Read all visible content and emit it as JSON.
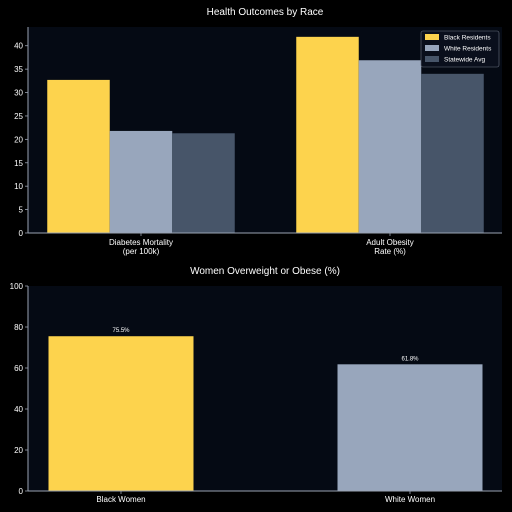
{
  "colors": {
    "figure_bg": "#000000",
    "plot_bg": "#050a14",
    "axis": "#9aa3b2",
    "text": "#ffffff",
    "legend_bg": "#0a0f1c",
    "legend_border": "#6b7280"
  },
  "chart_data": [
    {
      "type": "bar",
      "title": "Health Outcomes by Race",
      "xlabel": "",
      "ylabel": "",
      "categories": [
        [
          "Diabetes Mortality",
          "(per 100k)"
        ],
        [
          "Adult Obesity",
          "Rate (%)"
        ]
      ],
      "series": [
        {
          "name": "Black Residents",
          "color": "#fdd34d",
          "values": [
            32.7,
            41.9
          ]
        },
        {
          "name": "White Residents",
          "color": "#98a6bc",
          "values": [
            21.8,
            36.9
          ]
        },
        {
          "name": "Statewide Avg",
          "color": "#475569",
          "values": [
            21.3,
            34.0
          ]
        }
      ],
      "ylim": [
        0,
        44
      ],
      "yticks": [
        0,
        5,
        10,
        15,
        20,
        25,
        30,
        35,
        40
      ],
      "grid": false,
      "legend": "top-right"
    },
    {
      "type": "bar",
      "title": "Women Overweight or Obese (%)",
      "xlabel": "",
      "ylabel": "",
      "categories": [
        "Black Women",
        "White Women"
      ],
      "values": [
        75.5,
        61.8
      ],
      "colors": [
        "#fdd34d",
        "#98a6bc"
      ],
      "value_labels": [
        "75.5%",
        "61.8%"
      ],
      "ylim": [
        0,
        100
      ],
      "yticks": [
        0,
        20,
        40,
        60,
        80,
        100
      ],
      "grid": false
    }
  ]
}
